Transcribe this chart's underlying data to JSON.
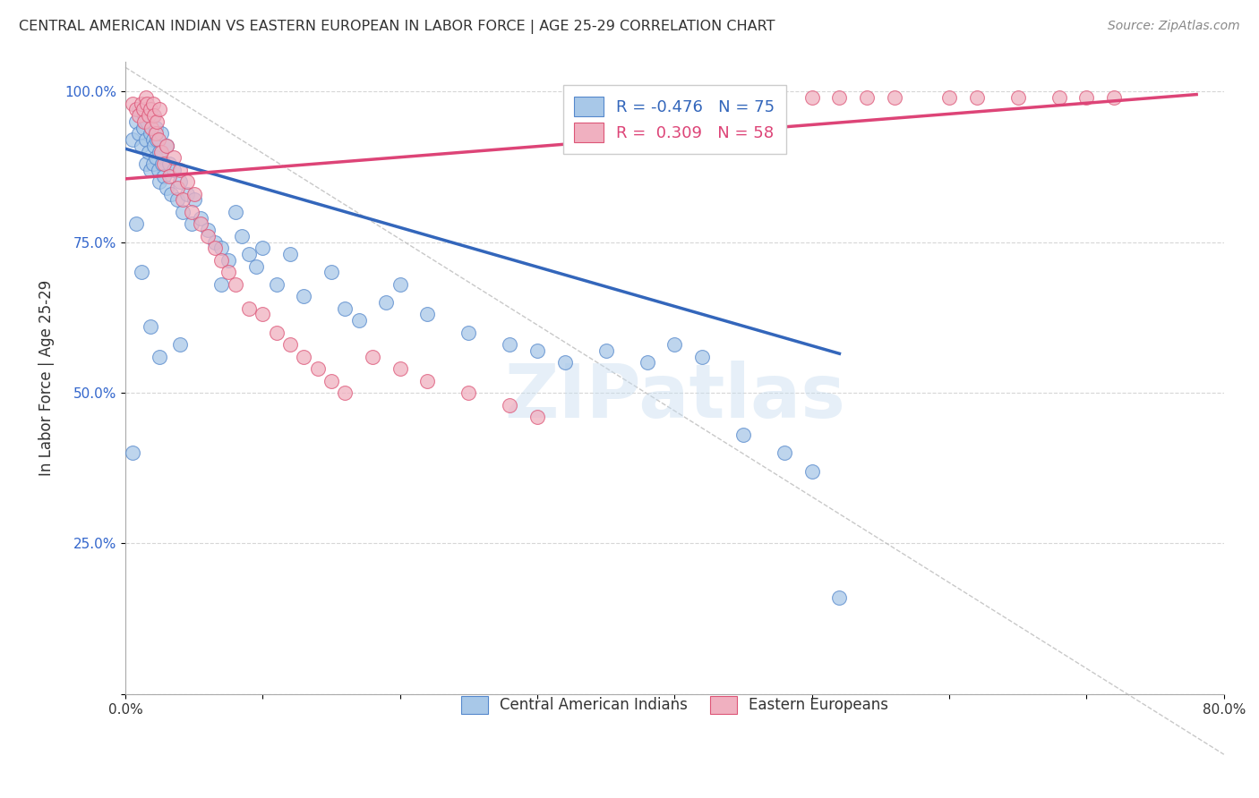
{
  "title": "CENTRAL AMERICAN INDIAN VS EASTERN EUROPEAN IN LABOR FORCE | AGE 25-29 CORRELATION CHART",
  "source": "Source: ZipAtlas.com",
  "xlabel": "",
  "ylabel": "In Labor Force | Age 25-29",
  "xlim": [
    0.0,
    0.8
  ],
  "ylim": [
    0.0,
    1.05
  ],
  "xticks": [
    0.0,
    0.1,
    0.2,
    0.3,
    0.4,
    0.5,
    0.6,
    0.7,
    0.8
  ],
  "xticklabels": [
    "0.0%",
    "",
    "",
    "",
    "",
    "",
    "",
    "",
    "80.0%"
  ],
  "yticks": [
    0.0,
    0.25,
    0.5,
    0.75,
    1.0
  ],
  "yticklabels": [
    "",
    "25.0%",
    "50.0%",
    "75.0%",
    "100.0%"
  ],
  "legend_label_blue": "Central American Indians",
  "legend_label_pink": "Eastern Europeans",
  "r_blue": "-0.476",
  "n_blue": "75",
  "r_pink": "0.309",
  "n_pink": "58",
  "blue_color": "#a8c8e8",
  "pink_color": "#f0b0c0",
  "blue_edge_color": "#5588cc",
  "pink_edge_color": "#dd5577",
  "blue_line_color": "#3366bb",
  "pink_line_color": "#dd4477",
  "watermark": "ZIPatlas",
  "blue_line_x": [
    0.0,
    0.52
  ],
  "blue_line_y": [
    0.905,
    0.565
  ],
  "pink_line_x": [
    0.0,
    0.78
  ],
  "pink_line_y": [
    0.855,
    0.995
  ],
  "dashed_line_x": [
    0.0,
    0.8
  ],
  "dashed_line_y": [
    1.04,
    -0.1
  ],
  "background_color": "#ffffff",
  "grid_color": "#cccccc",
  "blue_scatter_x": [
    0.005,
    0.008,
    0.01,
    0.01,
    0.012,
    0.013,
    0.014,
    0.015,
    0.015,
    0.016,
    0.017,
    0.018,
    0.018,
    0.02,
    0.02,
    0.02,
    0.021,
    0.022,
    0.022,
    0.023,
    0.024,
    0.025,
    0.025,
    0.026,
    0.027,
    0.028,
    0.03,
    0.03,
    0.032,
    0.033,
    0.035,
    0.038,
    0.04,
    0.042,
    0.045,
    0.048,
    0.05,
    0.055,
    0.06,
    0.065,
    0.07,
    0.075,
    0.08,
    0.085,
    0.09,
    0.095,
    0.1,
    0.11,
    0.12,
    0.13,
    0.15,
    0.16,
    0.17,
    0.19,
    0.2,
    0.22,
    0.25,
    0.28,
    0.3,
    0.32,
    0.35,
    0.38,
    0.4,
    0.42,
    0.45,
    0.48,
    0.5,
    0.52,
    0.005,
    0.008,
    0.012,
    0.018,
    0.025,
    0.04,
    0.07
  ],
  "blue_scatter_y": [
    0.92,
    0.95,
    0.93,
    0.97,
    0.91,
    0.94,
    0.96,
    0.92,
    0.88,
    0.95,
    0.9,
    0.93,
    0.87,
    0.96,
    0.92,
    0.88,
    0.91,
    0.94,
    0.89,
    0.92,
    0.87,
    0.9,
    0.85,
    0.93,
    0.88,
    0.86,
    0.91,
    0.84,
    0.88,
    0.83,
    0.87,
    0.82,
    0.85,
    0.8,
    0.83,
    0.78,
    0.82,
    0.79,
    0.77,
    0.75,
    0.74,
    0.72,
    0.8,
    0.76,
    0.73,
    0.71,
    0.74,
    0.68,
    0.73,
    0.66,
    0.7,
    0.64,
    0.62,
    0.65,
    0.68,
    0.63,
    0.6,
    0.58,
    0.57,
    0.55,
    0.57,
    0.55,
    0.58,
    0.56,
    0.43,
    0.4,
    0.37,
    0.16,
    0.4,
    0.78,
    0.7,
    0.61,
    0.56,
    0.58,
    0.68
  ],
  "pink_scatter_x": [
    0.005,
    0.008,
    0.01,
    0.012,
    0.013,
    0.014,
    0.015,
    0.016,
    0.017,
    0.018,
    0.019,
    0.02,
    0.021,
    0.022,
    0.023,
    0.024,
    0.025,
    0.026,
    0.028,
    0.03,
    0.032,
    0.035,
    0.038,
    0.04,
    0.042,
    0.045,
    0.048,
    0.05,
    0.055,
    0.06,
    0.065,
    0.07,
    0.075,
    0.08,
    0.09,
    0.1,
    0.11,
    0.12,
    0.13,
    0.14,
    0.15,
    0.16,
    0.18,
    0.2,
    0.22,
    0.25,
    0.28,
    0.3,
    0.5,
    0.52,
    0.54,
    0.56,
    0.6,
    0.62,
    0.65,
    0.68,
    0.7,
    0.72
  ],
  "pink_scatter_y": [
    0.98,
    0.97,
    0.96,
    0.98,
    0.97,
    0.95,
    0.99,
    0.98,
    0.96,
    0.97,
    0.94,
    0.98,
    0.96,
    0.93,
    0.95,
    0.92,
    0.97,
    0.9,
    0.88,
    0.91,
    0.86,
    0.89,
    0.84,
    0.87,
    0.82,
    0.85,
    0.8,
    0.83,
    0.78,
    0.76,
    0.74,
    0.72,
    0.7,
    0.68,
    0.64,
    0.63,
    0.6,
    0.58,
    0.56,
    0.54,
    0.52,
    0.5,
    0.56,
    0.54,
    0.52,
    0.5,
    0.48,
    0.46,
    0.99,
    0.99,
    0.99,
    0.99,
    0.99,
    0.99,
    0.99,
    0.99,
    0.99,
    0.99
  ]
}
